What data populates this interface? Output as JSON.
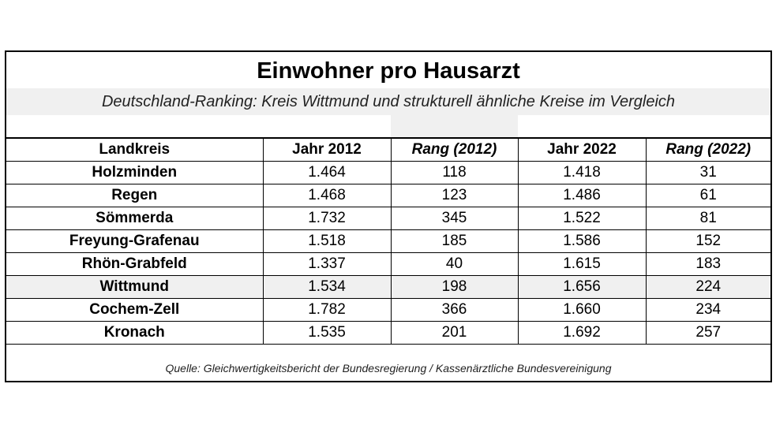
{
  "title": "Einwohner pro Hausarzt",
  "subtitle": "Deutschland-Ranking: Kreis Wittmund und strukturell ähnliche Kreise im Vergleich",
  "table": {
    "headers": [
      "Landkreis",
      "Jahr 2012",
      "Rang (2012)",
      "Jahr 2022",
      "Rang (2022)"
    ],
    "rows": [
      [
        "Holzminden",
        "1.464",
        "118",
        "1.418",
        "31"
      ],
      [
        "Regen",
        "1.468",
        "123",
        "1.486",
        "61"
      ],
      [
        "Sömmerda",
        "1.732",
        "345",
        "1.522",
        "81"
      ],
      [
        "Freyung-Grafenau",
        "1.518",
        "185",
        "1.586",
        "152"
      ],
      [
        "Rhön-Grabfeld",
        "1.337",
        "40",
        "1.615",
        "183"
      ],
      [
        "Wittmund",
        "1.534",
        "198",
        "1.656",
        "224"
      ],
      [
        "Cochem-Zell",
        "1.782",
        "366",
        "1.660",
        "234"
      ],
      [
        "Kronach",
        "1.535",
        "201",
        "1.692",
        "257"
      ]
    ],
    "highlight_row": "Wittmund",
    "highlight_color": "#f0f0f0"
  },
  "source": "Quelle: Gleichwertigkeitsbericht der Bundesregierung / Kassenärztliche Bundesvereinigung"
}
